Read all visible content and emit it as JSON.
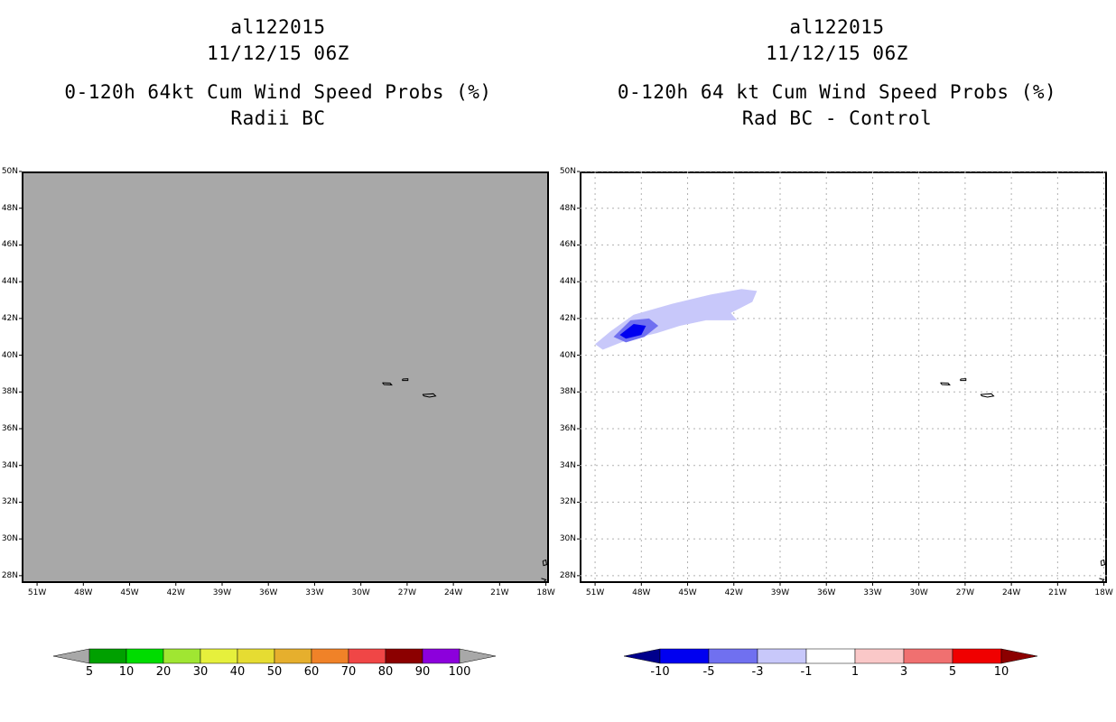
{
  "left_panel": {
    "storm_id": "al122015",
    "datetime": "11/12/15 06Z",
    "product": "0-120h 64kt Cum Wind Speed Probs (%)",
    "subtitle": "Radii BC",
    "background_color": "#a8a8a8",
    "colorbar": {
      "labels": [
        "5",
        "10",
        "20",
        "30",
        "40",
        "50",
        "60",
        "70",
        "80",
        "90",
        "100"
      ],
      "colors": [
        "#a8a8a8",
        "#00a000",
        "#00dc00",
        "#a0e632",
        "#e6f03c",
        "#e6dc32",
        "#e6af2d",
        "#f08228",
        "#f04646",
        "#8c0000",
        "#8c00dc",
        "#a8a8a8"
      ]
    }
  },
  "right_panel": {
    "storm_id": "al122015",
    "datetime": "11/12/15 06Z",
    "product": "0-120h 64 kt Cum Wind Speed Probs (%)",
    "subtitle": "Rad BC - Control",
    "colorbar": {
      "labels": [
        "-10",
        "-5",
        "-3",
        "-1",
        "1",
        "3",
        "5",
        "10"
      ],
      "colors": [
        "#00008c",
        "#0000f0",
        "#7070f0",
        "#c8c8fa",
        "#ffffff",
        "#fac8c8",
        "#f07070",
        "#f00000",
        "#8c0000"
      ]
    }
  },
  "map": {
    "lat_labels": [
      "50N",
      "48N",
      "46N",
      "44N",
      "42N",
      "40N",
      "38N",
      "36N",
      "34N",
      "32N",
      "30N",
      "28N"
    ],
    "lon_labels": [
      "51W",
      "48W",
      "45W",
      "42W",
      "39W",
      "36W",
      "33W",
      "30W",
      "27W",
      "24W",
      "21W",
      "18W"
    ],
    "lat_values": [
      50,
      48,
      46,
      44,
      42,
      40,
      38,
      36,
      34,
      32,
      30,
      28
    ],
    "lon_values": [
      -51,
      -48,
      -45,
      -42,
      -39,
      -36,
      -33,
      -30,
      -27,
      -24,
      -21,
      -18
    ],
    "lat_range": [
      27.6,
      50.0
    ],
    "lon_range": [
      -52.0,
      -17.8
    ]
  }
}
